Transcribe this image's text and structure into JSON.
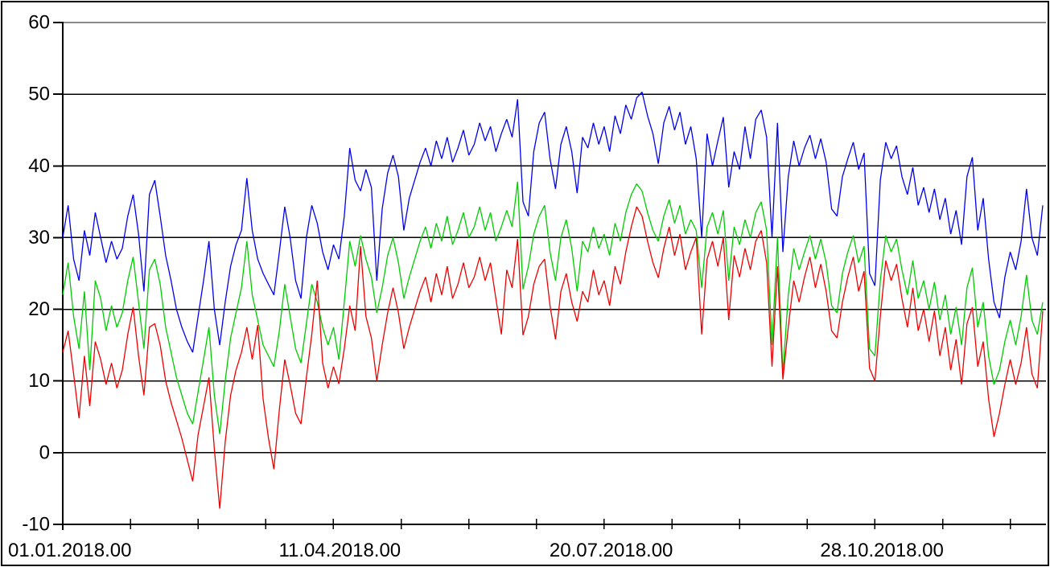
{
  "chart_data": {
    "type": "line",
    "title": "",
    "legend": "none",
    "grid": true,
    "x_axis": {
      "unit": "date-time (DD.MM.YYYY.HH)",
      "tick_labels": [
        "01.01.2018.00",
        "11.04.2018.00",
        "20.07.2018.00",
        "28.10.2018.00"
      ],
      "label_days": [
        0,
        100,
        200,
        300
      ],
      "minor_tick_days": [
        0,
        25,
        50,
        75,
        100,
        125,
        150,
        175,
        200,
        225,
        250,
        275,
        300,
        325,
        350
      ],
      "range_days": [
        0,
        362
      ]
    },
    "y_axis": {
      "min": -10,
      "max": 60,
      "tick_step": 10,
      "ticks": [
        60,
        50,
        40,
        30,
        20,
        10,
        0,
        -10
      ]
    },
    "colors": {
      "series_upper": "#0000ee",
      "series_middle": "#00cc00",
      "series_lower": "#ee0000",
      "grid": "#000000",
      "top_frame_line": "#8a8a8a",
      "axis": "#000000",
      "background": "#ffffff",
      "border": "#000000"
    },
    "x_days": [
      0,
      2,
      4,
      6,
      8,
      10,
      12,
      14,
      16,
      18,
      20,
      22,
      24,
      26,
      28,
      30,
      32,
      34,
      36,
      38,
      40,
      42,
      44,
      46,
      48,
      50,
      52,
      54,
      56,
      58,
      60,
      62,
      64,
      66,
      68,
      70,
      72,
      74,
      76,
      78,
      80,
      82,
      84,
      86,
      88,
      90,
      92,
      94,
      96,
      98,
      100,
      102,
      104,
      106,
      108,
      110,
      112,
      114,
      116,
      118,
      120,
      122,
      124,
      126,
      128,
      130,
      132,
      134,
      136,
      138,
      140,
      142,
      144,
      146,
      148,
      150,
      152,
      154,
      156,
      158,
      160,
      162,
      164,
      166,
      168,
      170,
      172,
      174,
      176,
      178,
      180,
      182,
      184,
      186,
      188,
      190,
      192,
      194,
      196,
      198,
      200,
      202,
      204,
      206,
      208,
      210,
      212,
      214,
      216,
      218,
      220,
      222,
      224,
      226,
      228,
      230,
      232,
      234,
      236,
      238,
      240,
      242,
      244,
      246,
      248,
      250,
      252,
      254,
      256,
      258,
      260,
      262,
      264,
      266,
      268,
      270,
      272,
      274,
      276,
      278,
      280,
      282,
      284,
      286,
      288,
      290,
      292,
      294,
      296,
      298,
      300,
      302,
      304,
      306,
      308,
      310,
      312,
      314,
      316,
      318,
      320,
      322,
      324,
      326,
      328,
      330,
      332,
      334,
      336,
      338,
      340,
      342,
      344,
      346,
      348,
      350,
      352,
      354,
      356,
      358,
      360,
      362
    ],
    "series": [
      {
        "name": "upper-blue",
        "color": "#0000ee",
        "values": [
          30,
          34.5,
          27,
          24,
          31,
          27.5,
          33.5,
          30,
          26.5,
          29.5,
          27,
          28.5,
          33,
          36,
          30.5,
          22.5,
          36,
          38,
          33,
          27.5,
          24,
          20,
          17.5,
          15.5,
          14,
          19,
          24,
          29.5,
          20,
          15,
          21,
          26,
          29,
          31,
          38.3,
          31,
          27,
          25,
          23.5,
          22,
          28,
          34.3,
          30,
          24,
          21.5,
          30,
          34.5,
          32,
          28,
          25.5,
          29,
          27,
          33,
          42.5,
          38,
          36.5,
          39.5,
          37,
          24,
          34,
          39,
          41.5,
          38.5,
          31,
          35.5,
          38,
          40.5,
          42.5,
          40,
          43.5,
          41,
          44,
          40.5,
          42.5,
          45,
          41.5,
          43,
          46,
          43.5,
          45.5,
          42,
          44.5,
          46.5,
          44,
          49.3,
          35,
          33,
          42,
          46,
          47.5,
          41,
          36.8,
          43,
          45.5,
          42,
          36.2,
          44,
          42.5,
          46,
          43,
          45.5,
          42,
          47,
          44.5,
          48.5,
          46.5,
          49.5,
          50.3,
          47,
          44.5,
          40.3,
          46,
          48.3,
          45,
          47.5,
          43,
          45.5,
          41,
          30,
          44.5,
          40,
          43.5,
          46.8,
          37,
          42,
          39.5,
          45.5,
          41,
          46.5,
          47.8,
          44,
          30,
          46,
          28,
          38.5,
          43.5,
          40,
          42.5,
          44.3,
          41,
          43.8,
          40.5,
          34,
          33,
          38.5,
          41,
          43.3,
          39.5,
          41.8,
          25,
          23.3,
          38,
          43.3,
          41,
          42.8,
          38.5,
          36,
          39.8,
          34.5,
          37,
          33.5,
          36.8,
          32.5,
          35.5,
          30.5,
          33.8,
          29,
          38.5,
          41.2,
          31,
          35.5,
          27,
          21,
          18.8,
          24.5,
          28,
          25.5,
          29.5,
          36.8,
          30,
          27.5,
          34.5
        ]
      },
      {
        "name": "middle-green",
        "color": "#00cc00",
        "values": [
          22,
          26.5,
          19,
          14.5,
          22.5,
          11.5,
          24,
          21.5,
          17,
          20.5,
          17.5,
          19.5,
          24,
          27.3,
          21,
          14.5,
          25.5,
          27,
          23.5,
          17.5,
          14,
          10.5,
          8,
          5.5,
          4,
          8.5,
          13,
          17.5,
          8,
          2.6,
          10,
          16,
          19.5,
          23,
          29.5,
          22,
          18.5,
          15,
          13.5,
          12,
          17,
          23.5,
          19,
          14.5,
          12.5,
          18,
          23.5,
          21,
          17.5,
          15,
          17.5,
          13,
          21,
          29.5,
          26,
          30.3,
          27,
          24.5,
          19.5,
          23,
          27.5,
          30,
          26.5,
          21.5,
          24.5,
          27,
          29.5,
          31.5,
          28.5,
          32,
          29.5,
          33,
          29,
          31,
          33.5,
          30,
          31.5,
          34.3,
          31,
          33.5,
          29.5,
          31.5,
          33.8,
          31.5,
          37.8,
          22.8,
          26,
          30.5,
          33,
          34.5,
          28,
          24,
          30,
          32.5,
          28.5,
          22.5,
          29.5,
          28,
          31.5,
          28.5,
          30.5,
          27.5,
          32,
          29.5,
          33.5,
          36,
          37.5,
          36.5,
          33.5,
          31,
          29.5,
          33,
          35.3,
          32,
          34.5,
          30.5,
          32.5,
          31,
          23,
          31.5,
          33.5,
          30.5,
          33.8,
          24,
          31.5,
          29,
          32.5,
          30,
          33.5,
          35,
          31,
          15,
          30,
          11,
          22,
          28.5,
          25.5,
          28,
          30.3,
          27,
          29.8,
          26.5,
          20.5,
          19.5,
          25,
          28,
          30.3,
          26.5,
          28.8,
          14.5,
          13.5,
          24,
          30.3,
          28,
          29.8,
          25.5,
          22,
          26.8,
          21.5,
          24,
          20,
          23.8,
          18.5,
          22,
          16.5,
          20.3,
          15,
          23,
          25.8,
          17.5,
          21,
          13.5,
          9.5,
          11.5,
          15.5,
          18.5,
          15,
          19,
          24.8,
          18.5,
          16.5,
          21
        ]
      },
      {
        "name": "lower-red",
        "color": "#ee0000",
        "values": [
          14,
          17,
          11,
          4.8,
          13.5,
          6.5,
          15.5,
          13,
          9.5,
          12.5,
          9,
          11.5,
          16.5,
          20.3,
          13.5,
          8,
          17.5,
          18,
          15,
          10,
          7,
          4.5,
          2,
          -1,
          -4,
          2.5,
          6.5,
          10.5,
          0.5,
          -7.8,
          1.5,
          8,
          11.5,
          14,
          17.5,
          13,
          17.8,
          7.5,
          2,
          -2.3,
          6,
          13,
          9.5,
          5.5,
          4,
          10.5,
          16.5,
          24,
          12.5,
          9,
          12,
          9.6,
          14.5,
          20.5,
          17,
          28.8,
          19,
          16,
          10,
          15,
          19.5,
          23,
          19.5,
          14.5,
          17.5,
          20,
          22.5,
          24.5,
          21,
          25,
          22,
          26,
          21.5,
          23.5,
          26.5,
          23,
          24.5,
          27.3,
          24,
          26.5,
          21.5,
          16.5,
          25.5,
          23,
          29.8,
          16.4,
          19,
          23.5,
          26,
          27,
          20.5,
          15.8,
          22.5,
          25,
          21,
          18.3,
          22.5,
          21,
          25.5,
          22,
          24,
          20.5,
          26,
          23.5,
          28,
          31.5,
          34.3,
          33,
          29.5,
          26.5,
          24.4,
          28.5,
          31.5,
          27.5,
          30.5,
          25.5,
          28,
          30,
          16.5,
          27,
          29.5,
          26,
          30,
          18.5,
          27.5,
          24.5,
          28.5,
          25.5,
          29.5,
          31,
          26.5,
          12,
          26,
          10.2,
          17.5,
          24,
          21,
          24.5,
          27.3,
          23,
          26.3,
          22.5,
          17,
          16,
          21,
          24.5,
          27.3,
          22.5,
          25.3,
          11.8,
          10,
          19,
          26.8,
          24,
          26.3,
          21.5,
          17.5,
          23,
          17,
          20,
          15.5,
          19.8,
          13.5,
          17.5,
          11.5,
          15.8,
          9.5,
          18,
          20.3,
          12,
          15.5,
          7.5,
          2.2,
          5.5,
          9.5,
          13,
          9.5,
          12.5,
          17.5,
          11,
          9,
          19.8
        ]
      }
    ]
  }
}
